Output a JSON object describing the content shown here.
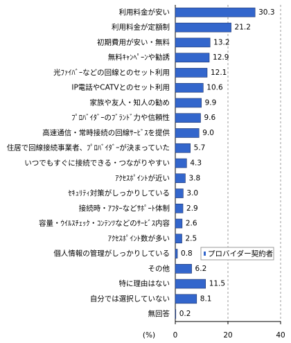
{
  "chart_data": {
    "type": "hbar",
    "categories": [
      "利用料金が安い",
      "利用料金が定額制",
      "初期費用が安い・無料",
      "無料ｷｬﾝﾍﾟｰﾝや勧誘",
      "光ﾌｧｲﾊﾞｰなどの回線とのセット利用",
      "IP電話やCATVとのセット利用",
      "家族や友人・知人の勧め",
      "ﾌﾟﾛﾊﾞｲﾀﾞｰのﾌﾞﾗﾝﾄﾞ力や信頼性",
      "高速通信・常時接続の回線ｻｰﾋﾞｽを提供",
      "住居で回線接続事業者、ﾌﾟﾛﾊﾞｲﾀﾞｰが決まっていた",
      "いつでもすぐに接続できる・つながりやすい",
      "ｱｸｾｽﾎﾟｲﾝﾄが近い",
      "ｾｷｭﾘﾃｨ対策がしっかりしている",
      "接続時・ｱﾌﾀｰなどｻﾎﾟｰﾄ体制",
      "容量・ｳｲﾙｽﾁｪｯｸ・ｺﾝﾃﾝﾂなどのｻｰﾋﾞｽ内容",
      "ｱｸｾｽﾎﾟｲﾝﾄ数が多い",
      "個人情報の管理がしっかりしている",
      "その他",
      "特に理由はない",
      "自分では選択していない",
      "無回答"
    ],
    "series": [
      {
        "name": "プロバイダー契約者",
        "color": "#3366cc",
        "values": [
          30.3,
          21.2,
          13.2,
          12.9,
          12.1,
          10.6,
          9.9,
          9.6,
          9.0,
          5.7,
          4.3,
          3.8,
          3.0,
          2.9,
          2.6,
          2.5,
          0.8,
          6.2,
          11.5,
          8.1,
          0.2
        ],
        "value_labels": [
          "30.3",
          "21.2",
          "13.2",
          "12.9",
          "12.1",
          "10.6",
          "9.9",
          "9.6",
          "9.0",
          "5.7",
          "4.3",
          "3.8",
          "3.0",
          "2.9",
          "2.6",
          "2.5",
          "0.8",
          "6.2",
          "11.5",
          "8.1",
          "0.2"
        ]
      }
    ],
    "xlabel": "(%)",
    "xlim": [
      0,
      40
    ],
    "xticks": [
      0,
      20,
      40
    ],
    "grid": true,
    "legend": "right"
  }
}
